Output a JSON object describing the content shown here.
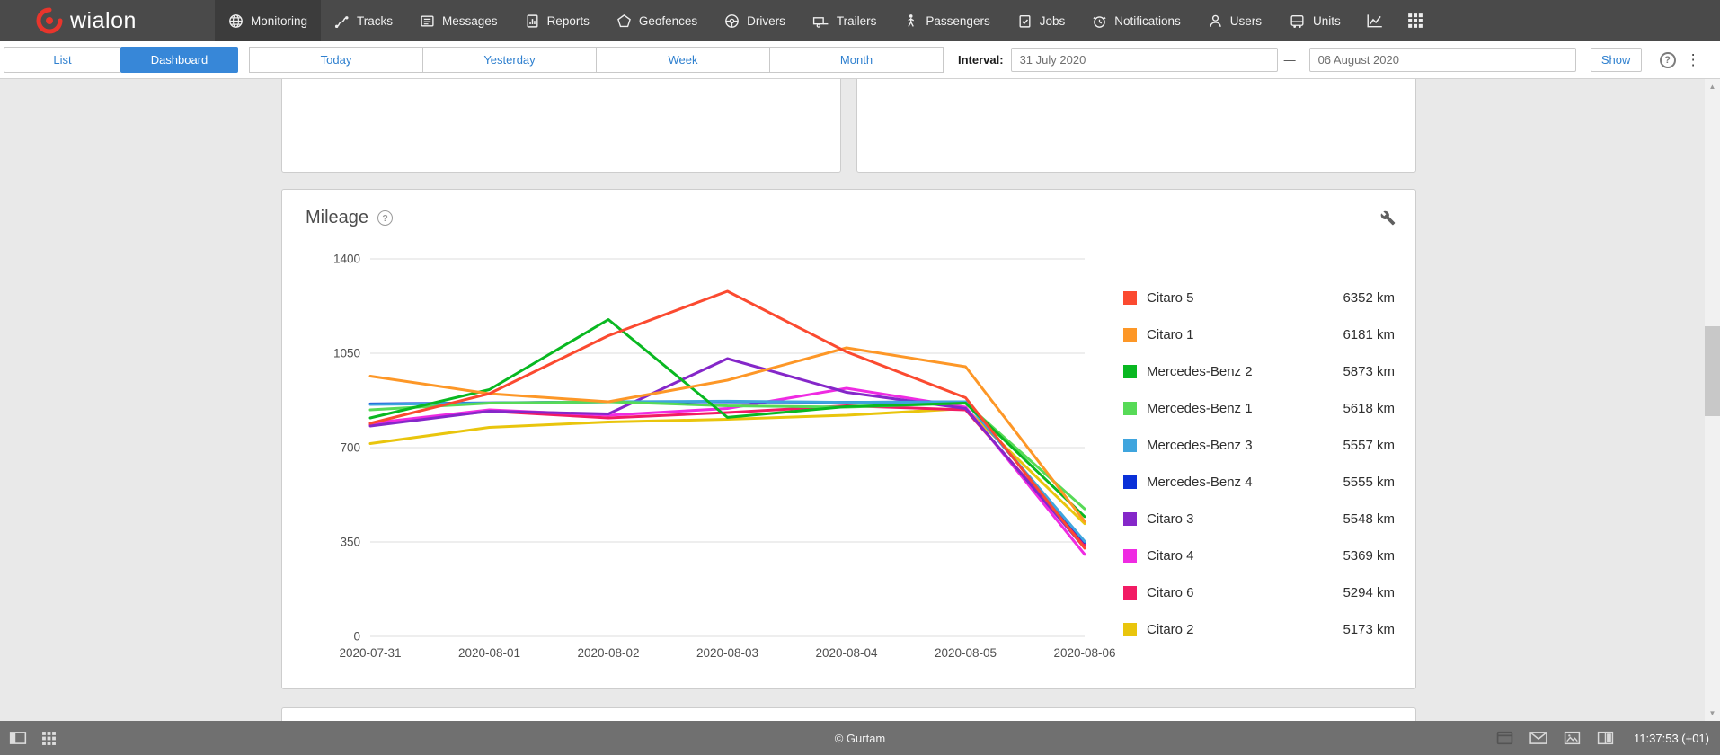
{
  "topnav": {
    "brand": "wialon",
    "items": [
      {
        "label": "Monitoring",
        "active": true
      },
      {
        "label": "Tracks"
      },
      {
        "label": "Messages"
      },
      {
        "label": "Reports"
      },
      {
        "label": "Geofences"
      },
      {
        "label": "Drivers"
      },
      {
        "label": "Trailers"
      },
      {
        "label": "Passengers"
      },
      {
        "label": "Jobs"
      },
      {
        "label": "Notifications"
      },
      {
        "label": "Users"
      },
      {
        "label": "Units"
      }
    ]
  },
  "toolbar": {
    "view_tabs": [
      {
        "label": "List",
        "active": false
      },
      {
        "label": "Dashboard",
        "active": true
      }
    ],
    "range_buttons": [
      "Today",
      "Yesterday",
      "Week",
      "Month"
    ],
    "interval_label": "Interval:",
    "date_from": "31 July 2020",
    "date_to": "06 August 2020",
    "dash": "—",
    "show_label": "Show"
  },
  "card": {
    "title": "Mileage"
  },
  "chart_data": {
    "type": "line",
    "title": "Mileage",
    "categories": [
      "2020-07-31",
      "2020-08-01",
      "2020-08-02",
      "2020-08-03",
      "2020-08-04",
      "2020-08-05",
      "2020-08-06"
    ],
    "yticks": [
      0,
      350,
      700,
      1050,
      1400
    ],
    "ylim": [
      0,
      1400
    ],
    "grid": "horizontal",
    "legend_position": "right",
    "unit": "km",
    "series": [
      {
        "name": "Citaro 5",
        "color": "#fb4a30",
        "total": "6352 km",
        "values": [
          790,
          900,
          1115,
          1280,
          1055,
          885,
          327
        ]
      },
      {
        "name": "Citaro 1",
        "color": "#fd9727",
        "total": "6181 km",
        "values": [
          965,
          900,
          870,
          950,
          1070,
          1000,
          426
        ]
      },
      {
        "name": "Mercedes-Benz 2",
        "color": "#09b821",
        "total": "5873 km",
        "values": [
          810,
          915,
          1175,
          812,
          852,
          865,
          444
        ]
      },
      {
        "name": "Mercedes-Benz 1",
        "color": "#57da57",
        "total": "5618 km",
        "values": [
          840,
          865,
          870,
          855,
          850,
          865,
          473
        ]
      },
      {
        "name": "Mercedes-Benz 3",
        "color": "#3fa5de",
        "total": "5557 km",
        "values": [
          860,
          865,
          870,
          872,
          868,
          870,
          352
        ]
      },
      {
        "name": "Mercedes-Benz 4",
        "color": "#0a30d8",
        "total": "5555 km",
        "values": [
          862,
          866,
          870,
          870,
          868,
          870,
          349
        ]
      },
      {
        "name": "Citaro 3",
        "color": "#8527c9",
        "total": "5548 km",
        "values": [
          780,
          835,
          825,
          1030,
          905,
          845,
          328
        ]
      },
      {
        "name": "Citaro 4",
        "color": "#ef2be2",
        "total": "5369 km",
        "values": [
          790,
          840,
          820,
          845,
          920,
          850,
          304
        ]
      },
      {
        "name": "Citaro 6",
        "color": "#f21b64",
        "total": "5294 km",
        "values": [
          785,
          835,
          810,
          830,
          855,
          840,
          339
        ]
      },
      {
        "name": "Citaro 2",
        "color": "#e9c50d",
        "total": "5173 km",
        "values": [
          715,
          775,
          795,
          805,
          820,
          845,
          418
        ]
      }
    ]
  },
  "statusbar": {
    "copyright": "© Gurtam",
    "time": "11:37:53 (+01)"
  },
  "icons": {
    "help_glyph": "?",
    "kebab": "⋮",
    "arrow_up": "▲",
    "arrow_down": "▼"
  }
}
